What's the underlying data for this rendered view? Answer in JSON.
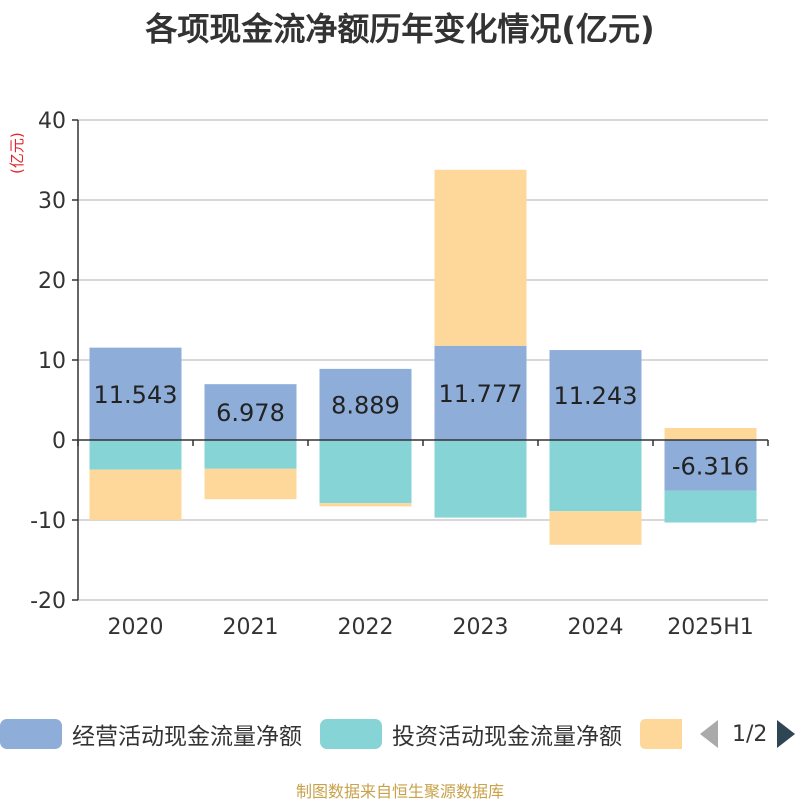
{
  "title": "各项现金流净额历年变化情况(亿元)",
  "unit_label": "(亿元)",
  "source": "制图数据来自恒生聚源数据库",
  "pager": {
    "text": "1/2"
  },
  "colors": {
    "operating": "#8eadd9",
    "investing": "#86d4d6",
    "financing": "#fdd89a",
    "grid": "#cccccc",
    "axis": "#333333",
    "title": "#333333",
    "unit": "#e0262c",
    "source": "#c8a24a"
  },
  "chart_data": {
    "type": "bar",
    "stacked": true,
    "categories": [
      "2020",
      "2021",
      "2022",
      "2023",
      "2024",
      "2025H1"
    ],
    "ylim": [
      -20,
      40
    ],
    "yticks": [
      -20,
      -10,
      0,
      10,
      20,
      30,
      40
    ],
    "grid": true,
    "legend_position": "bottom",
    "series": [
      {
        "name": "经营活动现金流量净额",
        "color_key": "operating",
        "values": [
          11.543,
          6.978,
          8.889,
          11.777,
          11.243,
          -6.316
        ],
        "labels": true
      },
      {
        "name": "投资活动现金流量净额",
        "color_key": "investing",
        "values": [
          -3.7,
          -3.6,
          -7.9,
          -9.7,
          -8.9,
          -4.0
        ],
        "labels": false
      },
      {
        "name": "",
        "color_key": "financing",
        "values": [
          -6.3,
          -3.8,
          -0.4,
          22.0,
          -4.2,
          1.5
        ],
        "labels": false
      }
    ],
    "data_labels": [
      "11.543",
      "6.978",
      "8.889",
      "11.777",
      "11.243",
      "-6.316"
    ]
  }
}
